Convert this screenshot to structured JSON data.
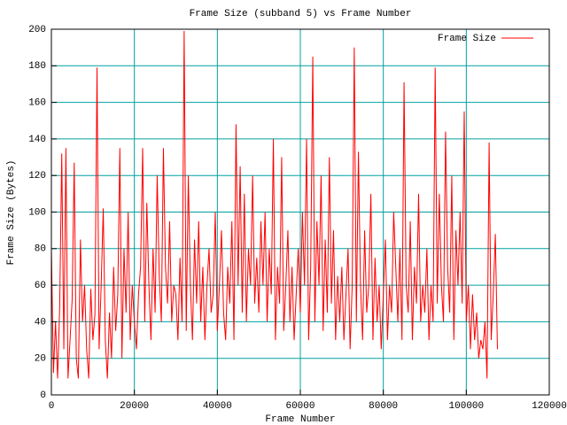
{
  "chart_data": {
    "type": "line",
    "title": "Frame Size (subband 5) vs Frame Number",
    "x_label": "Frame Number",
    "y_label": "Frame Size (Bytes)",
    "legend_position": "top-right",
    "grid": true,
    "grid_color": "#00a0a0",
    "xlim": [
      0,
      120000
    ],
    "ylim": [
      0,
      200
    ],
    "xticks": [
      0,
      20000,
      40000,
      60000,
      80000,
      100000,
      120000
    ],
    "yticks": [
      0,
      20,
      40,
      60,
      80,
      100,
      120,
      140,
      160,
      180,
      200
    ],
    "x": [
      0,
      500,
      1000,
      1500,
      2000,
      2500,
      3000,
      3500,
      4000,
      4500,
      5000,
      5500,
      6000,
      6500,
      7000,
      7500,
      8000,
      8500,
      9000,
      9500,
      10000,
      10500,
      11000,
      11500,
      12000,
      12500,
      13000,
      13500,
      14000,
      14500,
      15000,
      15500,
      16000,
      16500,
      17000,
      17500,
      18000,
      18500,
      19000,
      19500,
      20000,
      20500,
      21000,
      21500,
      22000,
      22500,
      23000,
      23500,
      24000,
      24500,
      25000,
      25500,
      26000,
      26500,
      27000,
      27500,
      28000,
      28500,
      29000,
      29500,
      30000,
      30500,
      31000,
      31500,
      32000,
      32500,
      33000,
      33500,
      34000,
      34500,
      35000,
      35500,
      36000,
      36500,
      37000,
      37500,
      38000,
      38500,
      39000,
      39500,
      40000,
      40500,
      41000,
      41500,
      42000,
      42500,
      43000,
      43500,
      44000,
      44500,
      45000,
      45500,
      46000,
      46500,
      47000,
      47500,
      48000,
      48500,
      49000,
      49500,
      50000,
      50500,
      51000,
      51500,
      52000,
      52500,
      53000,
      53500,
      54000,
      54500,
      55000,
      55500,
      56000,
      56500,
      57000,
      57500,
      58000,
      58500,
      59000,
      59500,
      60000,
      60500,
      61000,
      61500,
      62000,
      62500,
      63000,
      63500,
      64000,
      64500,
      65000,
      65500,
      66000,
      66500,
      67000,
      67500,
      68000,
      68500,
      69000,
      69500,
      70000,
      70500,
      71000,
      71500,
      72000,
      72500,
      73000,
      73500,
      74000,
      74500,
      75000,
      75500,
      76000,
      76500,
      77000,
      77500,
      78000,
      78500,
      79000,
      79500,
      80000,
      80500,
      81000,
      81500,
      82000,
      82500,
      83000,
      83500,
      84000,
      84500,
      85000,
      85500,
      86000,
      86500,
      87000,
      87500,
      88000,
      88500,
      89000,
      89500,
      90000,
      90500,
      91000,
      91500,
      92000,
      92500,
      93000,
      93500,
      94000,
      94500,
      95000,
      95500,
      96000,
      96500,
      97000,
      97500,
      98000,
      98500,
      99000,
      99500,
      100000,
      100500,
      101000,
      101500,
      102000,
      102500,
      103000,
      103500,
      104000,
      104500,
      105000,
      105500,
      106000,
      106500,
      107000,
      107500
    ],
    "series": [
      {
        "name": "Frame Size",
        "color": "#ff0000",
        "values": [
          80,
          12,
          40,
          9,
          48,
          132,
          25,
          135,
          9,
          30,
          52,
          127,
          20,
          9,
          85,
          40,
          60,
          25,
          9,
          58,
          30,
          44,
          179,
          25,
          60,
          102,
          30,
          9,
          45,
          20,
          70,
          35,
          55,
          135,
          20,
          80,
          45,
          100,
          30,
          60,
          40,
          25,
          55,
          70,
          135,
          40,
          105,
          60,
          30,
          80,
          45,
          120,
          65,
          40,
          135,
          70,
          50,
          95,
          40,
          60,
          55,
          30,
          75,
          40,
          199,
          35,
          120,
          60,
          30,
          85,
          50,
          95,
          40,
          70,
          30,
          60,
          80,
          45,
          55,
          100,
          35,
          60,
          90,
          45,
          30,
          70,
          50,
          95,
          30,
          148,
          60,
          125,
          45,
          110,
          40,
          80,
          60,
          120,
          50,
          75,
          45,
          95,
          60,
          100,
          40,
          80,
          55,
          140,
          30,
          70,
          50,
          130,
          35,
          60,
          90,
          40,
          70,
          30,
          55,
          80,
          45,
          100,
          60,
          140,
          30,
          70,
          185,
          40,
          95,
          60,
          120,
          35,
          85,
          45,
          130,
          50,
          90,
          30,
          65,
          40,
          70,
          30,
          55,
          80,
          25,
          60,
          190,
          40,
          133,
          60,
          30,
          90,
          45,
          60,
          110,
          30,
          75,
          40,
          60,
          25,
          55,
          85,
          30,
          60,
          45,
          100,
          70,
          40,
          80,
          30,
          171,
          60,
          45,
          95,
          30,
          70,
          50,
          110,
          40,
          60,
          45,
          80,
          30,
          60,
          40,
          179,
          50,
          110,
          60,
          40,
          144,
          70,
          45,
          120,
          30,
          90,
          60,
          100,
          50,
          155,
          40,
          60,
          25,
          55,
          30,
          45,
          20,
          30,
          25,
          40,
          9,
          138,
          30,
          55,
          88,
          25
        ]
      }
    ]
  }
}
